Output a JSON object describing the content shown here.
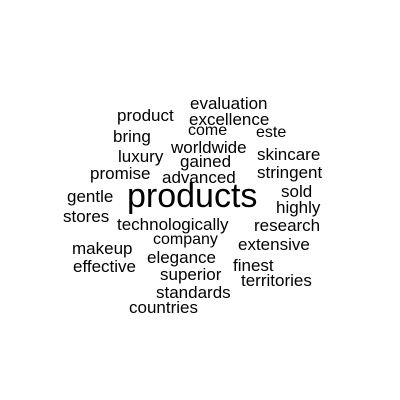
{
  "word_cloud": {
    "words": [
      {
        "text": "evaluation"
      },
      {
        "text": "product"
      },
      {
        "text": "excellence"
      },
      {
        "text": "bring"
      },
      {
        "text": "come"
      },
      {
        "text": "este"
      },
      {
        "text": "worldwide"
      },
      {
        "text": "luxury"
      },
      {
        "text": "skincare"
      },
      {
        "text": "gained"
      },
      {
        "text": "promise"
      },
      {
        "text": "stringent"
      },
      {
        "text": "advanced"
      },
      {
        "text": "gentle"
      },
      {
        "text": "products"
      },
      {
        "text": "sold"
      },
      {
        "text": "highly"
      },
      {
        "text": "stores"
      },
      {
        "text": "technologically"
      },
      {
        "text": "research"
      },
      {
        "text": "company"
      },
      {
        "text": "extensive"
      },
      {
        "text": "makeup"
      },
      {
        "text": "elegance"
      },
      {
        "text": "effective"
      },
      {
        "text": "finest"
      },
      {
        "text": "superior"
      },
      {
        "text": "territories"
      },
      {
        "text": "standards"
      },
      {
        "text": "countries"
      }
    ],
    "text_color": "#000000",
    "background_color": "#ffffff"
  }
}
